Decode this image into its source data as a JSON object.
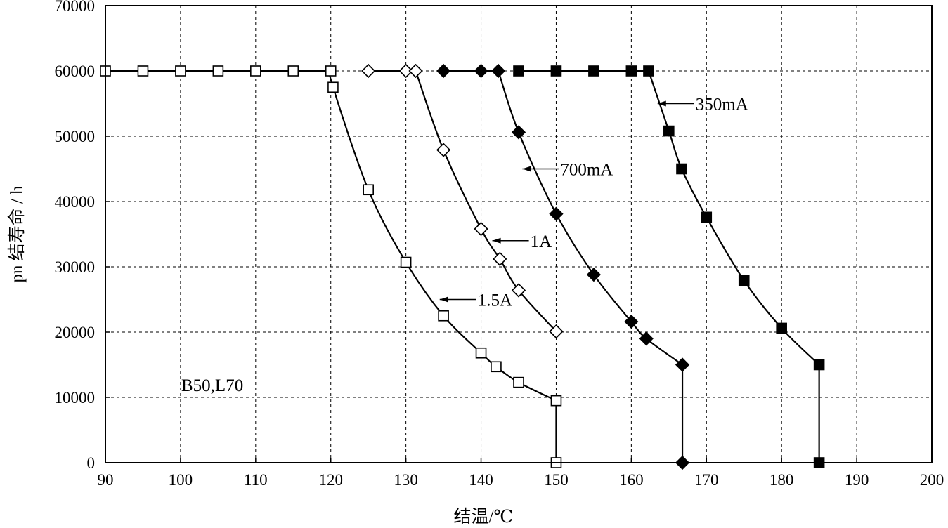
{
  "chart_data": {
    "type": "line",
    "xlabel": "结温/℃",
    "ylabel": "pn 结寿命 / h",
    "xlim": [
      90,
      200
    ],
    "ylim": [
      0,
      70000
    ],
    "xticks": [
      90,
      100,
      110,
      120,
      130,
      140,
      150,
      160,
      170,
      180,
      190,
      200
    ],
    "yticks": [
      0,
      10000,
      20000,
      30000,
      40000,
      50000,
      60000,
      70000
    ],
    "grid": true,
    "note": "B50,L70",
    "series": [
      {
        "name": "1.5A",
        "marker": "square-open",
        "x": [
          90,
          95,
          100,
          105,
          110,
          115,
          120,
          120.3,
          125,
          130,
          135,
          140,
          142,
          145,
          150,
          150
        ],
        "y": [
          60000,
          60000,
          60000,
          60000,
          60000,
          60000,
          60000,
          57500,
          41800,
          30700,
          22500,
          16800,
          14700,
          12300,
          9500,
          0
        ]
      },
      {
        "name": "1A",
        "marker": "diamond-open",
        "x": [
          125,
          130,
          131.3,
          135,
          140,
          142.5,
          145,
          150,
          150
        ],
        "y": [
          60000,
          60000,
          60000,
          47900,
          35800,
          31200,
          26400,
          20100,
          20100
        ]
      },
      {
        "name": "700mA",
        "marker": "diamond-filled",
        "x": [
          135,
          140,
          142.3,
          145,
          150,
          155,
          160,
          162,
          166.8,
          166.8
        ],
        "y": [
          60000,
          60000,
          60000,
          50600,
          38100,
          28800,
          21600,
          19000,
          15000,
          0
        ]
      },
      {
        "name": "350mA",
        "marker": "square-filled",
        "x": [
          145,
          150,
          155,
          160,
          162.3,
          165,
          166.7,
          170,
          175,
          180,
          185,
          185
        ],
        "y": [
          60000,
          60000,
          60000,
          60000,
          60000,
          50800,
          45000,
          37600,
          27900,
          20600,
          15000,
          0
        ]
      }
    ],
    "annotations": [
      {
        "text": "350mA",
        "series": "350mA",
        "x": 163.5,
        "y": 55000
      },
      {
        "text": "700mA",
        "series": "700mA",
        "x": 145.5,
        "y": 45000
      },
      {
        "text": "1A",
        "series": "1A",
        "x": 141.5,
        "y": 34000
      },
      {
        "text": "1.5A",
        "series": "1.5A",
        "x": 134.5,
        "y": 25000
      }
    ]
  }
}
